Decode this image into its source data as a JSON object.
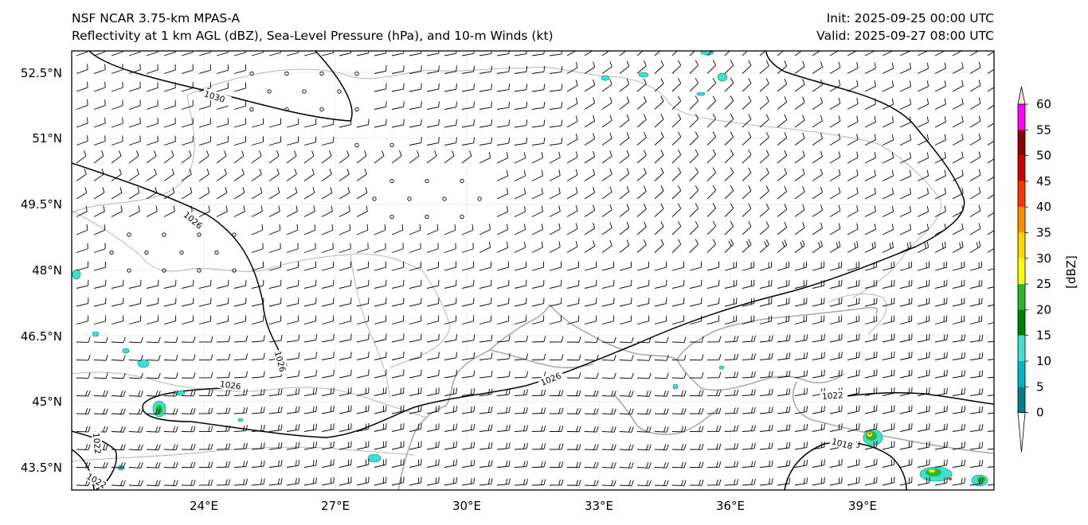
{
  "header": {
    "model": "NSF NCAR 3.75-km MPAS-A",
    "description": "Reflectivity at 1 km AGL (dBZ), Sea-Level Pressure (hPa), and 10-m Winds (kt)",
    "init": "Init: 2025-09-25 00:00 UTC",
    "valid": "Valid: 2025-09-27 08:00 UTC"
  },
  "axes": {
    "lat_labels": [
      "52.5°N",
      "51°N",
      "49.5°N",
      "48°N",
      "46.5°N",
      "45°N",
      "43.5°N"
    ],
    "lon_labels": [
      "24°E",
      "27°E",
      "30°E",
      "33°E",
      "36°E",
      "39°E"
    ]
  },
  "isobars": {
    "labels": [
      "1030",
      "1026",
      "1026",
      "1026",
      "1026",
      "1022",
      "1018",
      "1022",
      "1022"
    ]
  },
  "colorbar": {
    "label": "[dBZ]",
    "ticks": [
      "0",
      "5",
      "10",
      "15",
      "20",
      "25",
      "30",
      "35",
      "40",
      "45",
      "50",
      "55",
      "60"
    ],
    "colors": [
      "#ffffff",
      "#00808c",
      "#00b5c8",
      "#40e0d0",
      "#008000",
      "#2db52d",
      "#ffff00",
      "#ffd700",
      "#ff8c00",
      "#ff3300",
      "#cc0000",
      "#8b0000",
      "#ff00ff",
      "#ffe4d6"
    ]
  }
}
